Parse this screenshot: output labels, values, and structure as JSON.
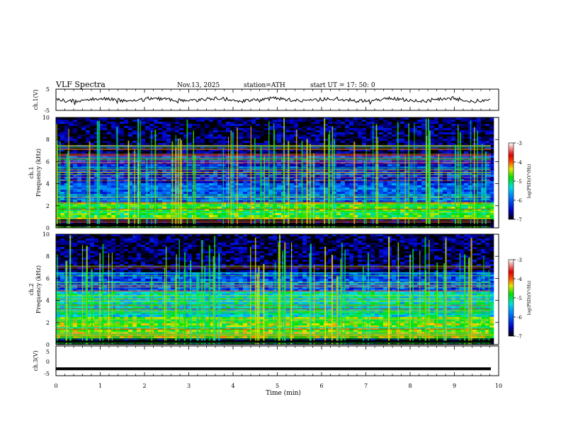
{
  "header": {
    "title": "VLF  Spectra",
    "date": "Nov.13, 2025",
    "station": "station=ATH",
    "start_ut": "start  UT  =   17: 50: 0"
  },
  "chart_data": [
    {
      "type": "line",
      "panel": "ch1-waveform",
      "ylabel": "ch.1(V)",
      "ylim": [
        -5,
        5
      ],
      "yticks": [
        5,
        -5
      ],
      "xlim": [
        0,
        10
      ],
      "series": [
        {
          "values_summary": "noise-like waveform around ~0 V, amplitude ~±1 V, sparse spikes"
        }
      ]
    },
    {
      "type": "heatmap",
      "panel": "ch1-spectrogram",
      "ylabel": "ch.1\nFrequency (kHz)",
      "ylim": [
        0,
        10
      ],
      "yticks": [
        0,
        2,
        4,
        6,
        8,
        10
      ],
      "xlim": [
        0,
        9.8
      ],
      "colorbar": {
        "label": "log(PSD)(V²/Hz)",
        "range": [
          -7,
          -3
        ],
        "ticks": [
          -3,
          -4,
          -5,
          -6,
          -7
        ]
      },
      "bands": [
        {
          "range_khz": [
            0.8,
            2.3
          ],
          "level": -4.8
        },
        {
          "range_khz": [
            2.3,
            4.0
          ],
          "level": -6.0
        },
        {
          "range_khz": [
            4.0,
            6.5
          ],
          "level": -6.3
        },
        {
          "range_khz": [
            6.5,
            10.0
          ],
          "level": -6.8
        }
      ]
    },
    {
      "type": "heatmap",
      "panel": "ch2-spectrogram",
      "ylabel": "ch.2\nFrequency (kHz)",
      "ylim": [
        0,
        10
      ],
      "yticks": [
        0,
        2,
        4,
        6,
        8,
        10
      ],
      "xlim": [
        0,
        9.8
      ],
      "colorbar": {
        "label": "log(PSD)(V²/Hz)",
        "range": [
          -7,
          -3
        ],
        "ticks": [
          -3,
          -4,
          -5,
          -6,
          -7
        ]
      },
      "bands": [
        {
          "range_khz": [
            0.5,
            2.5
          ],
          "level": -4.6
        },
        {
          "range_khz": [
            2.5,
            4.8
          ],
          "level": -5.3
        },
        {
          "range_khz": [
            4.8,
            6.5
          ],
          "level": -6.1
        },
        {
          "range_khz": [
            6.5,
            10.0
          ],
          "level": -6.8
        }
      ]
    },
    {
      "type": "line",
      "panel": "ch3-waveform",
      "ylabel": "ch.3(V)",
      "ylim": [
        -5,
        5
      ],
      "yticks": [
        5,
        0,
        -5
      ],
      "xlim": [
        0,
        10
      ],
      "series": [
        {
          "values_summary": "flat trace at ~-2.7 V"
        }
      ]
    }
  ],
  "x_axis": {
    "label": "Time  (min)",
    "ticks": [
      0,
      1,
      2,
      3,
      4,
      5,
      6,
      7,
      8,
      9,
      10
    ],
    "xlim": [
      0,
      10
    ]
  }
}
